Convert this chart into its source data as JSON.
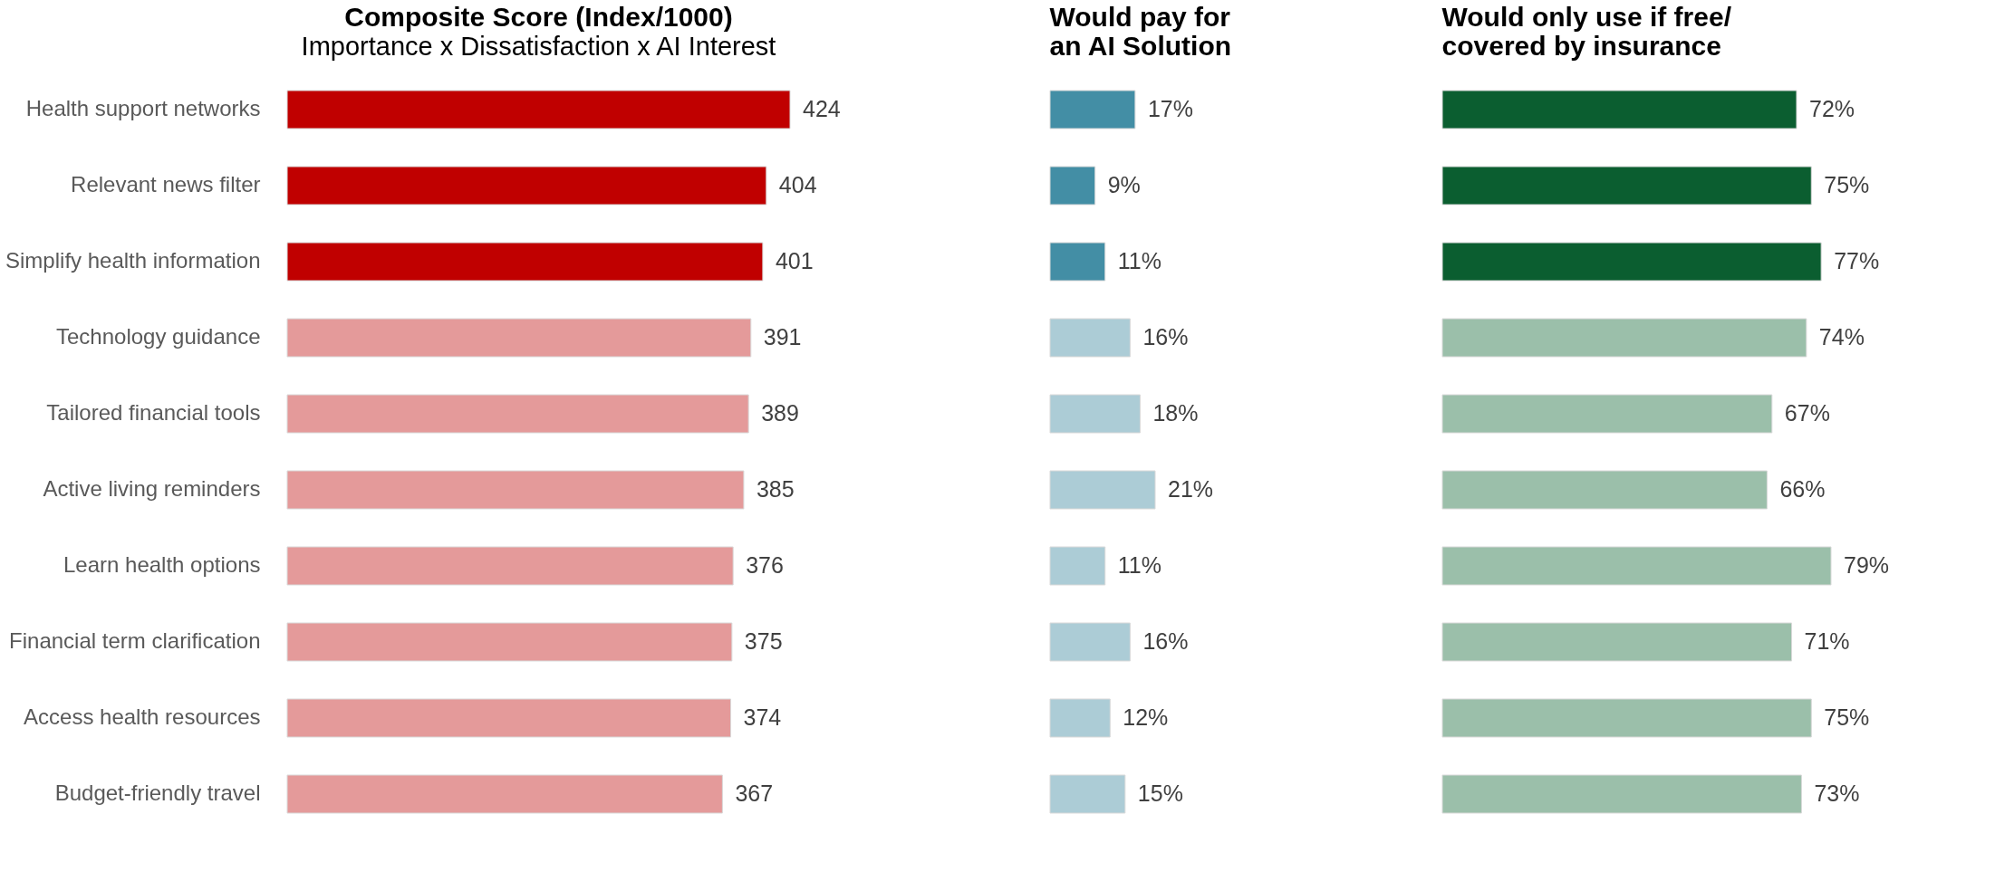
{
  "chart_data": [
    {
      "type": "bar",
      "orientation": "horizontal",
      "title": "Composite Score (Index/1000)",
      "subtitle": "Importance x Dissatisfaction x AI Interest",
      "categories": [
        "Health support networks",
        "Relevant news filter",
        "Simplify health information",
        "Technology guidance",
        "Tailored financial tools",
        "Active living reminders",
        "Learn health options",
        "Financial term clarification",
        "Access health resources",
        "Budget-friendly travel"
      ],
      "values": [
        424,
        404,
        401,
        391,
        389,
        385,
        376,
        375,
        374,
        367
      ],
      "colors": [
        "#c00000",
        "#c00000",
        "#c00000",
        "#e49a9a",
        "#e49a9a",
        "#e49a9a",
        "#e49a9a",
        "#e49a9a",
        "#e49a9a",
        "#e49a9a"
      ],
      "data_labels": true,
      "tick_labels": "y",
      "grid": false
    },
    {
      "type": "bar",
      "orientation": "horizontal",
      "title": "Would pay for\nan AI Solution",
      "categories": [
        null,
        null,
        null,
        null,
        null,
        null,
        null,
        null,
        null,
        null
      ],
      "values": [
        17,
        9,
        11,
        16,
        18,
        21,
        11,
        16,
        12,
        15
      ],
      "value_labels": [
        "17%",
        "9%",
        "11%",
        "16%",
        "18%",
        "21%",
        "11%",
        "16%",
        "12%",
        "15%"
      ],
      "colors": [
        "#438ea5",
        "#438ea5",
        "#438ea5",
        "#acccd6",
        "#acccd6",
        "#acccd6",
        "#acccd6",
        "#acccd6",
        "#acccd6",
        "#acccd6"
      ],
      "tick_labels": false,
      "grid": false
    },
    {
      "type": "bar",
      "orientation": "horizontal",
      "title": "Would only use if free/\ncovered by insurance",
      "categories": [
        null,
        null,
        null,
        null,
        null,
        null,
        null,
        null,
        null,
        null
      ],
      "values": [
        72,
        75,
        77,
        74,
        67,
        66,
        79,
        71,
        75,
        73
      ],
      "value_labels": [
        "72%",
        "75%",
        "77%",
        "74%",
        "67%",
        "66%",
        "79%",
        "71%",
        "75%",
        "73%"
      ],
      "colors": [
        "#0b5e30",
        "#0b5e30",
        "#0b5e30",
        "#9bbfaa",
        "#9bbfaa",
        "#9bbfaa",
        "#9bbfaa",
        "#9bbfaa",
        "#9bbfaa",
        "#9bbfaa"
      ],
      "tick_labels": false,
      "grid": false
    }
  ]
}
